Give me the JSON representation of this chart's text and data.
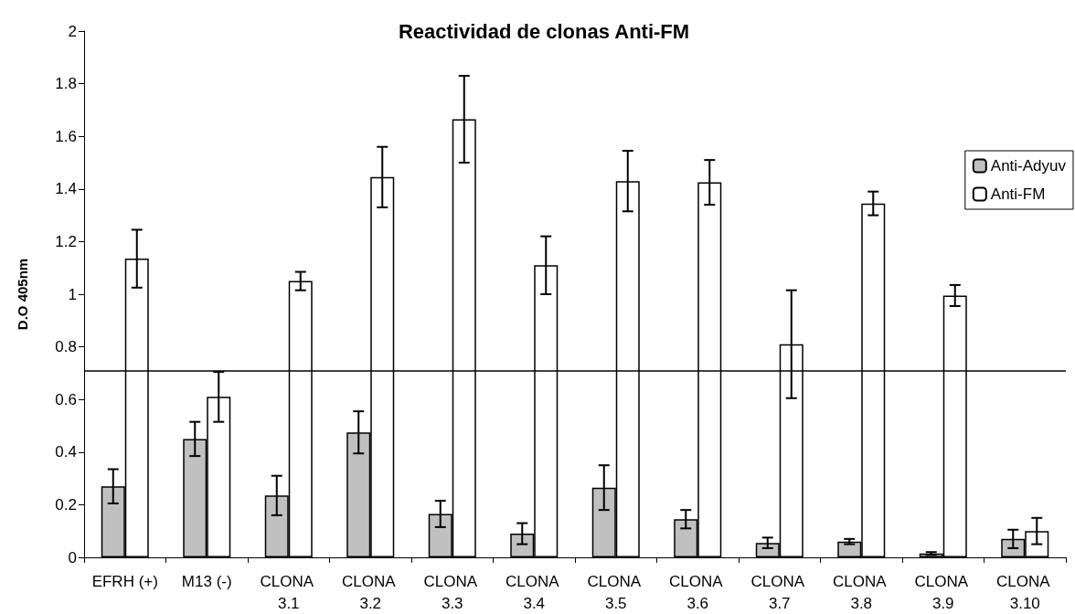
{
  "chart_data": {
    "type": "bar",
    "title": "Reactividad de clonas Anti-FM",
    "ylabel": "D.O 405nm",
    "categories": [
      "EFRH (+)",
      "M13 (-)",
      "CLONA 3.1",
      "CLONA 3.2",
      "CLONA 3.3",
      "CLONA 3.4",
      "CLONA 3.5",
      "CLONA 3.6",
      "CLONA 3.7",
      "CLONA 3.8",
      "CLONA 3.9",
      "CLONA 3.10"
    ],
    "series": [
      {
        "name": "Anti-Adyuv",
        "color": "#c0c0c0",
        "values": [
          0.27,
          0.45,
          0.235,
          0.475,
          0.165,
          0.09,
          0.265,
          0.145,
          0.055,
          0.06,
          0.015,
          0.07
        ],
        "errors": [
          0.065,
          0.065,
          0.075,
          0.08,
          0.05,
          0.04,
          0.085,
          0.035,
          0.02,
          0.01,
          0.005,
          0.035
        ]
      },
      {
        "name": "Anti-FM",
        "color": "#ffffff",
        "values": [
          1.135,
          0.61,
          1.05,
          1.445,
          1.665,
          1.11,
          1.43,
          1.425,
          0.81,
          1.345,
          0.995,
          0.1
        ],
        "errors": [
          0.11,
          0.095,
          0.035,
          0.115,
          0.165,
          0.11,
          0.115,
          0.085,
          0.205,
          0.045,
          0.04,
          0.05
        ]
      }
    ],
    "ylim": [
      0,
      2
    ],
    "yticks": [
      0,
      0.2,
      0.4,
      0.6,
      0.8,
      1,
      1.2,
      1.4,
      1.6,
      1.8,
      2
    ],
    "ref_lines": [
      {
        "axis": "y",
        "value": 0.715,
        "color": "#000000"
      }
    ],
    "grid": false,
    "legend": "right"
  }
}
